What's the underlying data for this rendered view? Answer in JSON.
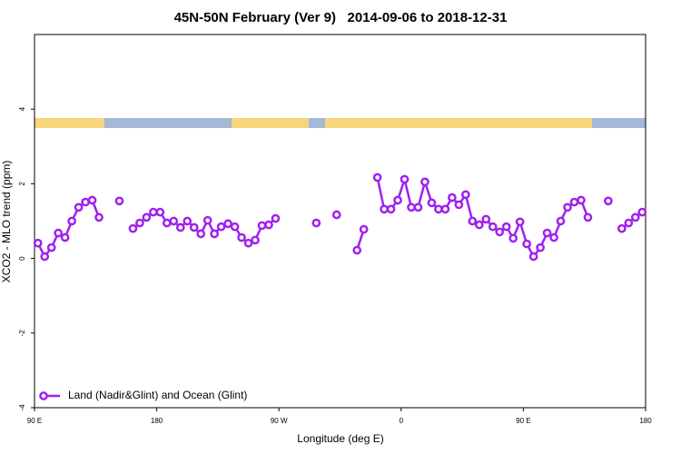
{
  "chart_data": {
    "type": "line",
    "title": "45N-50N February (Ver 9)   2014-09-06 to 2018-12-31",
    "xlabel": "Longitude (deg E)",
    "ylabel": "XCO2 - MLO trend (ppm)",
    "xlim": [
      90,
      540
    ],
    "xticks": [
      {
        "value": 90,
        "label": "90 E"
      },
      180,
      {
        "value": 270,
        "label": "90 W"
      },
      {
        "value": 360,
        "label": "0"
      },
      {
        "value": 450,
        "label": "90 E"
      },
      {
        "value": 540,
        "label": "180"
      }
    ],
    "ylim": [
      -4,
      6
    ],
    "yticks": [
      -4,
      -2,
      0,
      2,
      4
    ],
    "legend": "bottom-left",
    "series": [
      {
        "name": "Land (Nadir&Glint) and Ocean (Glint)",
        "color": "#a020f0",
        "x": [
          92.5,
          97.5,
          102.5,
          107.5,
          112.5,
          117.5,
          122.5,
          127.5,
          132.5,
          137.5,
          142.5,
          152.5,
          157.5,
          162.5,
          167.5,
          172.5,
          177.5,
          182.5,
          187.5,
          192.5,
          197.5,
          202.5,
          207.5,
          212.5,
          217.5,
          222.5,
          227.5,
          232.5,
          237.5,
          242.5,
          247.5,
          252.5,
          257.5,
          262.5,
          267.5,
          272.5,
          297.5,
          302.5,
          312.5,
          317.5,
          327.5,
          332.5,
          337.5,
          342.5,
          347.5,
          352.5,
          357.5,
          362.5,
          367.5,
          372.5,
          377.5,
          382.5,
          387.5,
          392.5,
          397.5,
          402.5,
          407.5,
          412.5,
          417.5,
          422.5,
          427.5,
          432.5,
          437.5,
          442.5,
          447.5,
          452.5,
          457.5,
          462.5,
          467.5,
          472.5,
          477.5,
          482.5,
          487.5,
          492.5,
          497.5,
          502.5,
          512.5,
          517.5,
          522.5,
          527.5,
          532.5,
          537.5
        ],
        "values": [
          0.41,
          0.05,
          0.29,
          0.68,
          0.56,
          1.0,
          1.37,
          1.51,
          1.56,
          1.1,
          null,
          1.54,
          null,
          0.8,
          0.95,
          1.1,
          1.24,
          1.24,
          0.95,
          1.0,
          0.83,
          1.0,
          0.83,
          0.66,
          1.02,
          0.66,
          0.85,
          0.93,
          0.85,
          0.56,
          0.41,
          0.49,
          0.88,
          0.9,
          1.07,
          null,
          0.95,
          null,
          1.17,
          null,
          0.22,
          0.78,
          null,
          2.17,
          1.32,
          1.32,
          1.56,
          2.12,
          1.37,
          1.37,
          2.05,
          1.49,
          1.32,
          1.32,
          1.63,
          1.44,
          1.71,
          1.0,
          0.9,
          1.05,
          0.85,
          0.71,
          0.85,
          0.54,
          0.98,
          0.39,
          0.05,
          0.29,
          0.68,
          0.56,
          1.0,
          1.37,
          1.51,
          1.56,
          1.1,
          null,
          1.54,
          null,
          0.8,
          0.95,
          1.1,
          1.24
        ]
      }
    ]
  }
}
